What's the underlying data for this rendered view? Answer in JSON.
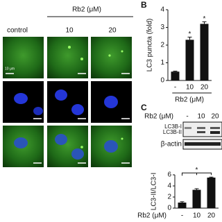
{
  "panel_a": {
    "header": {
      "group": "Rb2 (μM)",
      "columns": [
        "control",
        "10",
        "20"
      ]
    },
    "scale_bar": "10 μm"
  },
  "panel_c_blot": {
    "label": "C",
    "treatment": "Rb2 (μM)",
    "lanes": [
      "-",
      "10",
      "20"
    ],
    "bands": [
      "LC3B-I",
      "LC3B-II",
      "β-actin"
    ]
  },
  "chart_data": [
    {
      "type": "bar",
      "panel_label": "B",
      "y_label": "LC3 puncta (fold)",
      "x_label": "Rb2 (μM)",
      "categories": [
        "-",
        "10",
        "20"
      ],
      "values": [
        0.5,
        2.3,
        3.2
      ],
      "errors": [
        0.03,
        0.15,
        0.12
      ],
      "ylim": [
        0,
        4
      ],
      "yticks": [
        0,
        1,
        2,
        3,
        4
      ],
      "color": "#111111",
      "annotations": [
        "*",
        "*"
      ]
    },
    {
      "type": "bar",
      "y_label": "LC3-II/LC3-I",
      "x_label": "Rb2 (μM)",
      "categories": [
        "-",
        "10",
        "20"
      ],
      "values": [
        1.0,
        3.3,
        5.5
      ],
      "errors": [
        0.15,
        0.2,
        0.1
      ],
      "ylim": [
        0,
        6
      ],
      "yticks": [
        0,
        2,
        4,
        6
      ],
      "color": "#111111",
      "annotations": [
        "*"
      ]
    }
  ]
}
